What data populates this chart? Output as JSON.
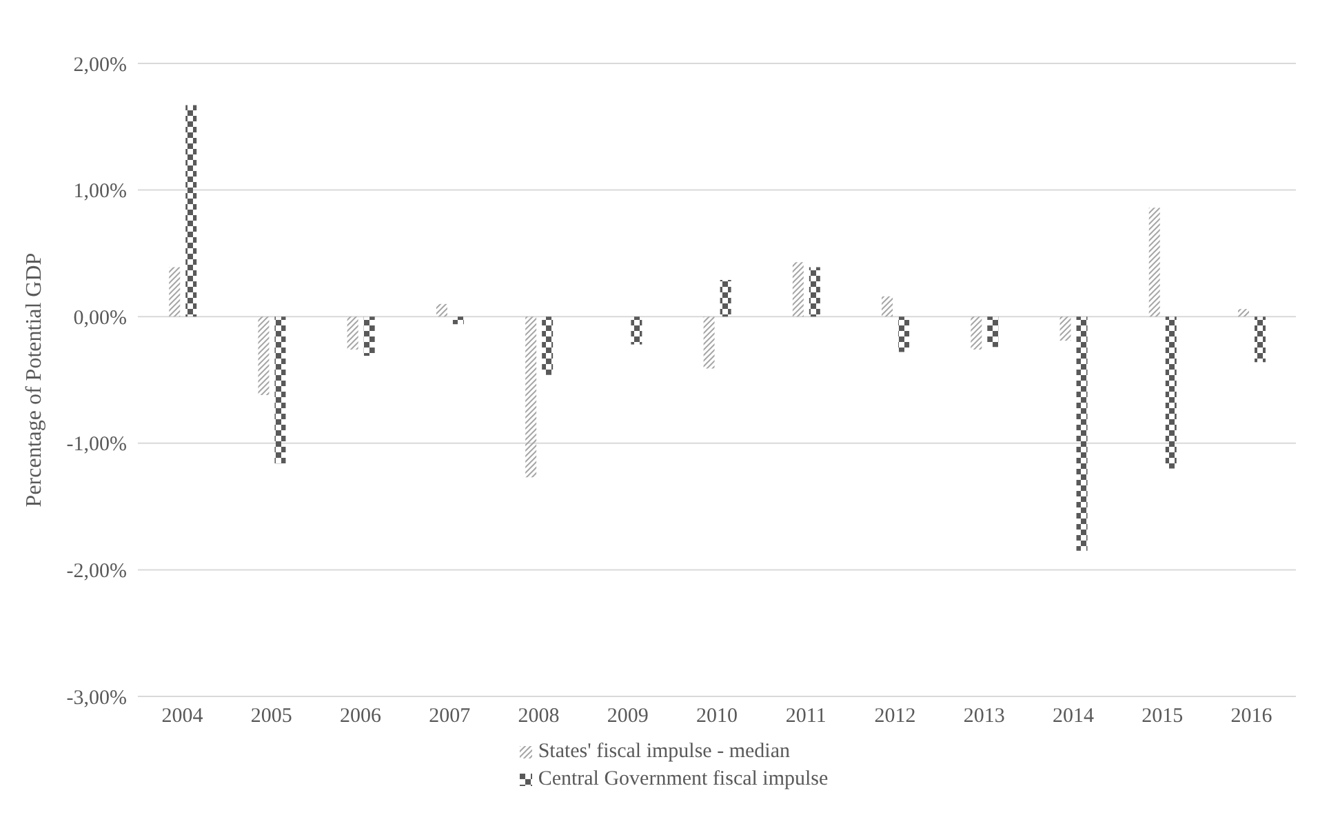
{
  "chart_data": {
    "type": "bar",
    "ylabel": "Percentage of Potential GDP",
    "categories": [
      "2004",
      "2005",
      "2006",
      "2007",
      "2008",
      "2009",
      "2010",
      "2011",
      "2012",
      "2013",
      "2014",
      "2015",
      "2016"
    ],
    "series": [
      {
        "name": "States' fiscal impulse - median",
        "color": "#a6a6a6",
        "values": [
          0.39,
          -0.62,
          -0.26,
          0.1,
          -1.27,
          0,
          -0.41,
          0.43,
          0.16,
          -0.26,
          -0.19,
          0.86,
          0.06
        ]
      },
      {
        "name": "Central Government fiscal impulse",
        "color": "#595959",
        "values": [
          1.67,
          -1.16,
          -0.31,
          -0.06,
          -0.46,
          -0.22,
          0.29,
          0.39,
          -0.28,
          -0.24,
          -1.85,
          -1.2,
          -0.36
        ]
      }
    ],
    "ylim": [
      -3,
      2
    ],
    "yticks": [
      {
        "value": -3,
        "label": "-3,00%"
      },
      {
        "value": -2,
        "label": "-2,00%"
      },
      {
        "value": -1,
        "label": "-1,00%"
      },
      {
        "value": 0,
        "label": "0,00%"
      },
      {
        "value": 1,
        "label": "1,00%"
      },
      {
        "value": 2,
        "label": "2,00%"
      }
    ],
    "grid": "y",
    "legend": "bottom"
  }
}
